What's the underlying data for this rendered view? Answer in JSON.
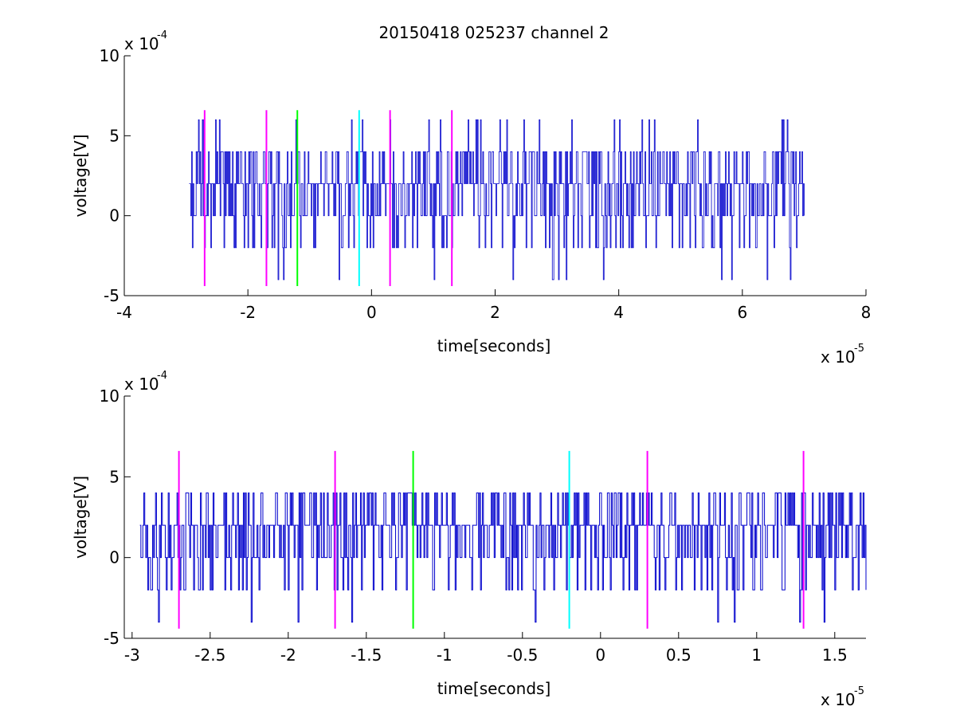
{
  "chart_data": [
    {
      "type": "line",
      "title": "20150418 025237 channel 2",
      "xlabel": "time[seconds]",
      "ylabel": "voltage[V]",
      "x_multiplier_text": "x 10",
      "x_multiplier_exp": "-5",
      "y_multiplier_text": "x 10",
      "y_multiplier_exp": "-4",
      "xlim": [
        -4,
        8
      ],
      "ylim": [
        -5,
        10
      ],
      "x_ticks": [
        "-4",
        "-2",
        "0",
        "2",
        "4",
        "6",
        "8"
      ],
      "y_ticks": [
        "-5",
        "0",
        "5",
        "10"
      ],
      "grid": false,
      "signal": {
        "color": "#0000cc",
        "x_start": -2.95,
        "x_end": 7.0,
        "step": 0.0125,
        "levels": [
          -4,
          -2,
          0,
          2,
          4,
          6
        ]
      },
      "markers": [
        {
          "x": -2.7,
          "color": "#ff00ff"
        },
        {
          "x": -1.7,
          "color": "#ff00ff"
        },
        {
          "x": -1.2,
          "color": "#00ff00"
        },
        {
          "x": -0.2,
          "color": "#00ffff"
        },
        {
          "x": 0.3,
          "color": "#ff00ff"
        },
        {
          "x": 1.3,
          "color": "#ff00ff"
        }
      ],
      "marker_range": [
        -4.4,
        6.6
      ]
    },
    {
      "type": "line",
      "title": "",
      "xlabel": "time[seconds]",
      "ylabel": "voltage[V]",
      "x_multiplier_text": "x 10",
      "x_multiplier_exp": "-5",
      "y_multiplier_text": "x 10",
      "y_multiplier_exp": "-4",
      "xlim": [
        -3.05,
        1.7
      ],
      "ylim": [
        -5,
        10
      ],
      "x_ticks": [
        "-3",
        "-2.5",
        "-2",
        "-1.5",
        "-1",
        "-0.5",
        "0",
        "0.5",
        "1",
        "1.5"
      ],
      "y_ticks": [
        "-5",
        "0",
        "5",
        "10"
      ],
      "grid": false,
      "signal": {
        "color": "#0000cc",
        "x_start": -2.95,
        "x_end": 1.7,
        "step": 0.00625,
        "levels": [
          -4,
          -2,
          0,
          2,
          4
        ]
      },
      "markers": [
        {
          "x": -2.7,
          "color": "#ff00ff"
        },
        {
          "x": -1.7,
          "color": "#ff00ff"
        },
        {
          "x": -1.2,
          "color": "#00ff00"
        },
        {
          "x": -0.2,
          "color": "#00ffff"
        },
        {
          "x": 0.3,
          "color": "#ff00ff"
        },
        {
          "x": 1.3,
          "color": "#ff00ff"
        }
      ],
      "marker_range": [
        -4.4,
        6.6
      ]
    }
  ]
}
